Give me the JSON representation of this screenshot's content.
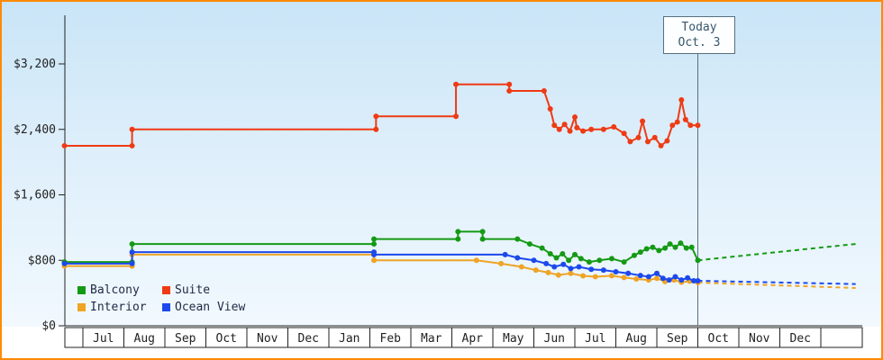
{
  "window": {
    "title": "Cruise Price History Chart"
  },
  "today_box": {
    "line1": "Today",
    "line2": "Oct. 3"
  },
  "chart_data": {
    "type": "line",
    "title": "",
    "xlabel": "",
    "ylabel": "",
    "x_unit": "months_after_first_july",
    "months": [
      "Jul",
      "Aug",
      "Sep",
      "Oct",
      "Nov",
      "Dec",
      "Jan",
      "Feb",
      "Mar",
      "Apr",
      "May",
      "Jun",
      "Jul",
      "Aug",
      "Sep",
      "Oct",
      "Nov",
      "Dec"
    ],
    "ylim": [
      0,
      3520
    ],
    "y_ticks": [
      0,
      800,
      1600,
      2400,
      3200
    ],
    "y_tick_labels": [
      "$0",
      "$800",
      "$1,600",
      "$2,400",
      "$3,200"
    ],
    "grid": false,
    "legend_position": "bottom-left",
    "today": {
      "label_line1": "Today",
      "label_line2": "Oct. 3",
      "t": 15.0,
      "line_color": "#56707e"
    },
    "series": [
      {
        "name": "Suite",
        "color": "#ee3b14",
        "points": [
          [
            -0.45,
            2200
          ],
          [
            1.2,
            2200
          ],
          [
            1.2,
            2400
          ],
          [
            7.15,
            2400
          ],
          [
            7.15,
            2560
          ],
          [
            9.1,
            2560
          ],
          [
            9.1,
            2950
          ],
          [
            10.4,
            2950
          ],
          [
            10.4,
            2870
          ],
          [
            11.25,
            2870
          ],
          [
            11.4,
            2650
          ],
          [
            11.5,
            2450
          ],
          [
            11.62,
            2400
          ],
          [
            11.75,
            2460
          ],
          [
            11.88,
            2380
          ],
          [
            12.0,
            2550
          ],
          [
            12.05,
            2420
          ],
          [
            12.2,
            2380
          ],
          [
            12.4,
            2400
          ],
          [
            12.7,
            2400
          ],
          [
            12.95,
            2430
          ],
          [
            13.2,
            2350
          ],
          [
            13.35,
            2250
          ],
          [
            13.55,
            2300
          ],
          [
            13.65,
            2500
          ],
          [
            13.78,
            2250
          ],
          [
            13.95,
            2300
          ],
          [
            14.1,
            2200
          ],
          [
            14.25,
            2260
          ],
          [
            14.38,
            2450
          ],
          [
            14.5,
            2490
          ],
          [
            14.6,
            2760
          ],
          [
            14.7,
            2520
          ],
          [
            14.82,
            2450
          ],
          [
            15.0,
            2450
          ]
        ],
        "forecast": null
      },
      {
        "name": "Balcony",
        "color": "#149a14",
        "points": [
          [
            -0.45,
            780
          ],
          [
            1.2,
            780
          ],
          [
            1.2,
            1000
          ],
          [
            7.1,
            1000
          ],
          [
            7.1,
            1060
          ],
          [
            9.15,
            1060
          ],
          [
            9.15,
            1150
          ],
          [
            9.75,
            1150
          ],
          [
            9.75,
            1060
          ],
          [
            10.6,
            1060
          ],
          [
            10.9,
            1000
          ],
          [
            11.2,
            950
          ],
          [
            11.4,
            880
          ],
          [
            11.55,
            830
          ],
          [
            11.7,
            880
          ],
          [
            11.85,
            800
          ],
          [
            12.0,
            870
          ],
          [
            12.15,
            820
          ],
          [
            12.35,
            780
          ],
          [
            12.6,
            800
          ],
          [
            12.9,
            820
          ],
          [
            13.2,
            780
          ],
          [
            13.45,
            860
          ],
          [
            13.6,
            900
          ],
          [
            13.75,
            940
          ],
          [
            13.9,
            960
          ],
          [
            14.05,
            920
          ],
          [
            14.2,
            950
          ],
          [
            14.32,
            1000
          ],
          [
            14.45,
            960
          ],
          [
            14.58,
            1010
          ],
          [
            14.72,
            950
          ],
          [
            14.85,
            960
          ],
          [
            15.0,
            800
          ]
        ],
        "forecast": [
          [
            15.0,
            800
          ],
          [
            18.85,
            1000
          ]
        ]
      },
      {
        "name": "Interior",
        "color": "#efa426",
        "points": [
          [
            -0.45,
            730
          ],
          [
            1.2,
            730
          ],
          [
            1.2,
            870
          ],
          [
            7.1,
            870
          ],
          [
            7.1,
            800
          ],
          [
            9.6,
            800
          ],
          [
            10.2,
            760
          ],
          [
            10.7,
            720
          ],
          [
            11.05,
            680
          ],
          [
            11.35,
            650
          ],
          [
            11.6,
            620
          ],
          [
            11.9,
            640
          ],
          [
            12.2,
            610
          ],
          [
            12.5,
            600
          ],
          [
            12.9,
            612
          ],
          [
            13.2,
            590
          ],
          [
            13.5,
            572
          ],
          [
            13.8,
            560
          ],
          [
            14.0,
            580
          ],
          [
            14.2,
            540
          ],
          [
            14.42,
            560
          ],
          [
            14.6,
            532
          ],
          [
            14.8,
            545
          ],
          [
            15.0,
            528
          ]
        ],
        "forecast": [
          [
            15.0,
            528
          ],
          [
            18.85,
            462
          ]
        ]
      },
      {
        "name": "Ocean View",
        "color": "#1c49ec",
        "points": [
          [
            -0.45,
            760
          ],
          [
            1.2,
            760
          ],
          [
            1.2,
            900
          ],
          [
            7.1,
            900
          ],
          [
            7.1,
            870
          ],
          [
            10.3,
            870
          ],
          [
            10.6,
            830
          ],
          [
            11.0,
            800
          ],
          [
            11.3,
            760
          ],
          [
            11.5,
            720
          ],
          [
            11.72,
            750
          ],
          [
            11.9,
            700
          ],
          [
            12.1,
            720
          ],
          [
            12.4,
            690
          ],
          [
            12.7,
            680
          ],
          [
            13.0,
            660
          ],
          [
            13.3,
            640
          ],
          [
            13.6,
            615
          ],
          [
            13.8,
            600
          ],
          [
            14.0,
            640
          ],
          [
            14.15,
            580
          ],
          [
            14.3,
            560
          ],
          [
            14.45,
            600
          ],
          [
            14.6,
            560
          ],
          [
            14.75,
            585
          ],
          [
            14.9,
            550
          ],
          [
            15.0,
            550
          ]
        ],
        "forecast": [
          [
            15.0,
            550
          ],
          [
            18.85,
            510
          ]
        ]
      }
    ],
    "legend_rows": [
      [
        1,
        0
      ],
      [
        2,
        3
      ]
    ]
  }
}
